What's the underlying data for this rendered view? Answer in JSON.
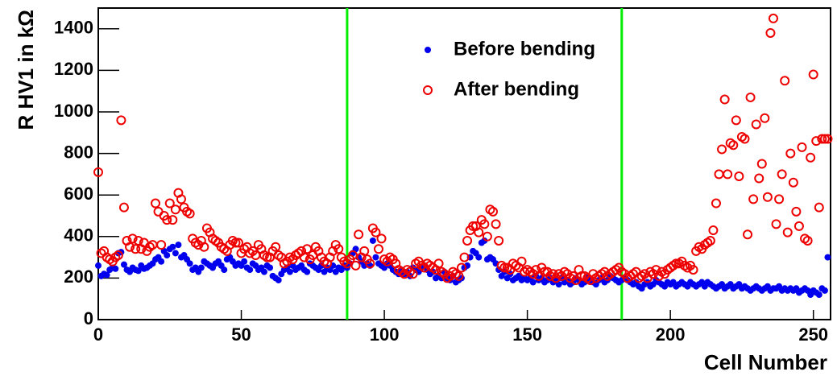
{
  "chart_data": {
    "type": "scatter",
    "x_label": "Cell Number",
    "y_label": "R HV1 in kΩ",
    "x": [
      0,
      1,
      2,
      3,
      4,
      5,
      6,
      7,
      8,
      9,
      10,
      11,
      12,
      13,
      14,
      15,
      16,
      17,
      18,
      19,
      20,
      21,
      22,
      23,
      24,
      25,
      26,
      27,
      28,
      29,
      30,
      31,
      32,
      33,
      34,
      35,
      36,
      37,
      38,
      39,
      40,
      41,
      42,
      43,
      44,
      45,
      46,
      47,
      48,
      49,
      50,
      51,
      52,
      53,
      54,
      55,
      56,
      57,
      58,
      59,
      60,
      61,
      62,
      63,
      64,
      65,
      66,
      67,
      68,
      69,
      70,
      71,
      72,
      73,
      74,
      75,
      76,
      77,
      78,
      79,
      80,
      81,
      82,
      83,
      84,
      85,
      86,
      87,
      88,
      89,
      90,
      91,
      92,
      93,
      94,
      95,
      96,
      97,
      98,
      99,
      100,
      101,
      102,
      103,
      104,
      105,
      106,
      107,
      108,
      109,
      110,
      111,
      112,
      113,
      114,
      115,
      116,
      117,
      118,
      119,
      120,
      121,
      122,
      123,
      124,
      125,
      126,
      127,
      128,
      129,
      130,
      131,
      132,
      133,
      134,
      135,
      136,
      137,
      138,
      139,
      140,
      141,
      142,
      143,
      144,
      145,
      146,
      147,
      148,
      149,
      150,
      151,
      152,
      153,
      154,
      155,
      156,
      157,
      158,
      159,
      160,
      161,
      162,
      163,
      164,
      165,
      166,
      167,
      168,
      169,
      170,
      171,
      172,
      173,
      174,
      175,
      176,
      177,
      178,
      179,
      180,
      181,
      182,
      183,
      184,
      185,
      186,
      187,
      188,
      189,
      190,
      191,
      192,
      193,
      194,
      195,
      196,
      197,
      198,
      199,
      200,
      201,
      202,
      203,
      204,
      205,
      206,
      207,
      208,
      209,
      210,
      211,
      212,
      213,
      214,
      215,
      216,
      217,
      218,
      219,
      220,
      221,
      222,
      223,
      224,
      225,
      226,
      227,
      228,
      229,
      230,
      231,
      232,
      233,
      234,
      235,
      236,
      237,
      238,
      239,
      240,
      241,
      242,
      243,
      244,
      245,
      246,
      247,
      248,
      249,
      250,
      251,
      252,
      253,
      254,
      255
    ],
    "series": [
      {
        "name": "Before bending",
        "color": "#0000ee",
        "marker": "filled",
        "values": [
          260,
          210,
          220,
          215,
          240,
          250,
          245,
          320,
          325,
          265,
          240,
          230,
          250,
          240,
          235,
          260,
          245,
          250,
          260,
          270,
          290,
          300,
          280,
          330,
          310,
          340,
          350,
          320,
          360,
          300,
          310,
          290,
          270,
          240,
          250,
          230,
          250,
          280,
          270,
          260,
          250,
          270,
          280,
          260,
          240,
          290,
          300,
          280,
          260,
          270,
          260,
          280,
          250,
          240,
          270,
          260,
          240,
          250,
          230,
          260,
          250,
          210,
          200,
          190,
          220,
          240,
          250,
          230,
          260,
          240,
          250,
          260,
          240,
          230,
          270,
          260,
          250,
          240,
          260,
          230,
          250,
          240,
          260,
          230,
          250,
          240,
          260,
          250,
          270,
          320,
          340,
          300,
          280,
          260,
          270,
          260,
          380,
          300,
          270,
          260,
          250,
          270,
          260,
          240,
          230,
          220,
          240,
          220,
          230,
          210,
          250,
          240,
          230,
          250,
          260,
          240,
          220,
          230,
          200,
          210,
          200,
          230,
          200,
          190,
          210,
          180,
          190,
          200,
          250,
          260,
          300,
          330,
          320,
          300,
          370,
          380,
          290,
          300,
          290,
          270,
          240,
          210,
          230,
          200,
          220,
          190,
          200,
          210,
          190,
          200,
          190,
          200,
          180,
          210,
          190,
          200,
          180,
          190,
          200,
          180,
          190,
          170,
          200,
          180,
          190,
          170,
          180,
          200,
          190,
          170,
          180,
          200,
          190,
          180,
          170,
          190,
          200,
          180,
          190,
          210,
          200,
          190,
          180,
          190,
          200,
          190,
          180,
          170,
          180,
          160,
          150,
          170,
          180,
          160,
          170,
          190,
          180,
          170,
          160,
          180,
          170,
          180,
          160,
          170,
          180,
          170,
          160,
          180,
          170,
          160,
          170,
          180,
          160,
          180,
          170,
          160,
          150,
          160,
          170,
          150,
          160,
          170,
          150,
          160,
          170,
          150,
          160,
          150,
          140,
          150,
          160,
          150,
          140,
          150,
          160,
          140,
          150,
          150,
          160,
          140,
          150,
          140,
          150,
          140,
          150,
          130,
          140,
          150,
          140,
          120,
          140,
          130,
          120,
          150,
          140,
          300
        ]
      },
      {
        "name": "After bending",
        "color": "#ee0000",
        "marker": "open",
        "values": [
          710,
          320,
          330,
          300,
          290,
          280,
          300,
          310,
          960,
          540,
          380,
          350,
          390,
          340,
          380,
          340,
          370,
          330,
          350,
          360,
          560,
          520,
          360,
          500,
          480,
          560,
          480,
          530,
          610,
          580,
          540,
          520,
          510,
          390,
          370,
          360,
          380,
          350,
          440,
          420,
          390,
          380,
          370,
          350,
          340,
          330,
          360,
          380,
          370,
          370,
          320,
          340,
          350,
          320,
          330,
          310,
          360,
          340,
          310,
          300,
          300,
          330,
          350,
          310,
          300,
          270,
          280,
          300,
          290,
          310,
          320,
          330,
          300,
          340,
          290,
          310,
          350,
          330,
          300,
          280,
          270,
          300,
          330,
          360,
          340,
          300,
          280,
          270,
          290,
          310,
          260,
          410,
          300,
          330,
          290,
          270,
          440,
          420,
          340,
          390,
          290,
          280,
          300,
          290,
          270,
          240,
          230,
          220,
          240,
          230,
          220,
          270,
          280,
          260,
          250,
          270,
          260,
          250,
          240,
          270,
          230,
          220,
          200,
          210,
          230,
          220,
          210,
          250,
          300,
          380,
          430,
          450,
          450,
          420,
          480,
          460,
          400,
          530,
          520,
          460,
          380,
          260,
          250,
          250,
          240,
          270,
          260,
          250,
          280,
          230,
          240,
          230,
          220,
          240,
          210,
          250,
          230,
          230,
          210,
          220,
          200,
          220,
          210,
          230,
          220,
          200,
          210,
          190,
          240,
          210,
          210,
          200,
          190,
          220,
          200,
          210,
          220,
          230,
          210,
          220,
          230,
          240,
          250,
          230,
          220,
          200,
          210,
          220,
          230,
          200,
          210,
          220,
          200,
          230,
          220,
          240,
          210,
          230,
          220,
          240,
          250,
          260,
          270,
          270,
          280,
          260,
          250,
          260,
          240,
          330,
          350,
          340,
          360,
          370,
          380,
          430,
          560,
          700,
          820,
          1060,
          700,
          850,
          840,
          960,
          690,
          880,
          870,
          410,
          1070,
          580,
          940,
          680,
          750,
          970,
          590,
          1380,
          1450,
          460,
          580,
          700,
          1150,
          420,
          800,
          660,
          520,
          450,
          830,
          390,
          380,
          780,
          1180,
          860,
          540,
          870,
          870,
          870
        ]
      }
    ],
    "xlim": [
      0,
      256
    ],
    "ylim": [
      0,
      1500
    ],
    "xticks": [
      0,
      50,
      100,
      150,
      200,
      250
    ],
    "yticks": [
      0,
      200,
      400,
      600,
      800,
      1000,
      1200,
      1400
    ],
    "vlines": [
      87,
      183
    ],
    "vline_color": "#00ee00",
    "legend": "top-center"
  }
}
